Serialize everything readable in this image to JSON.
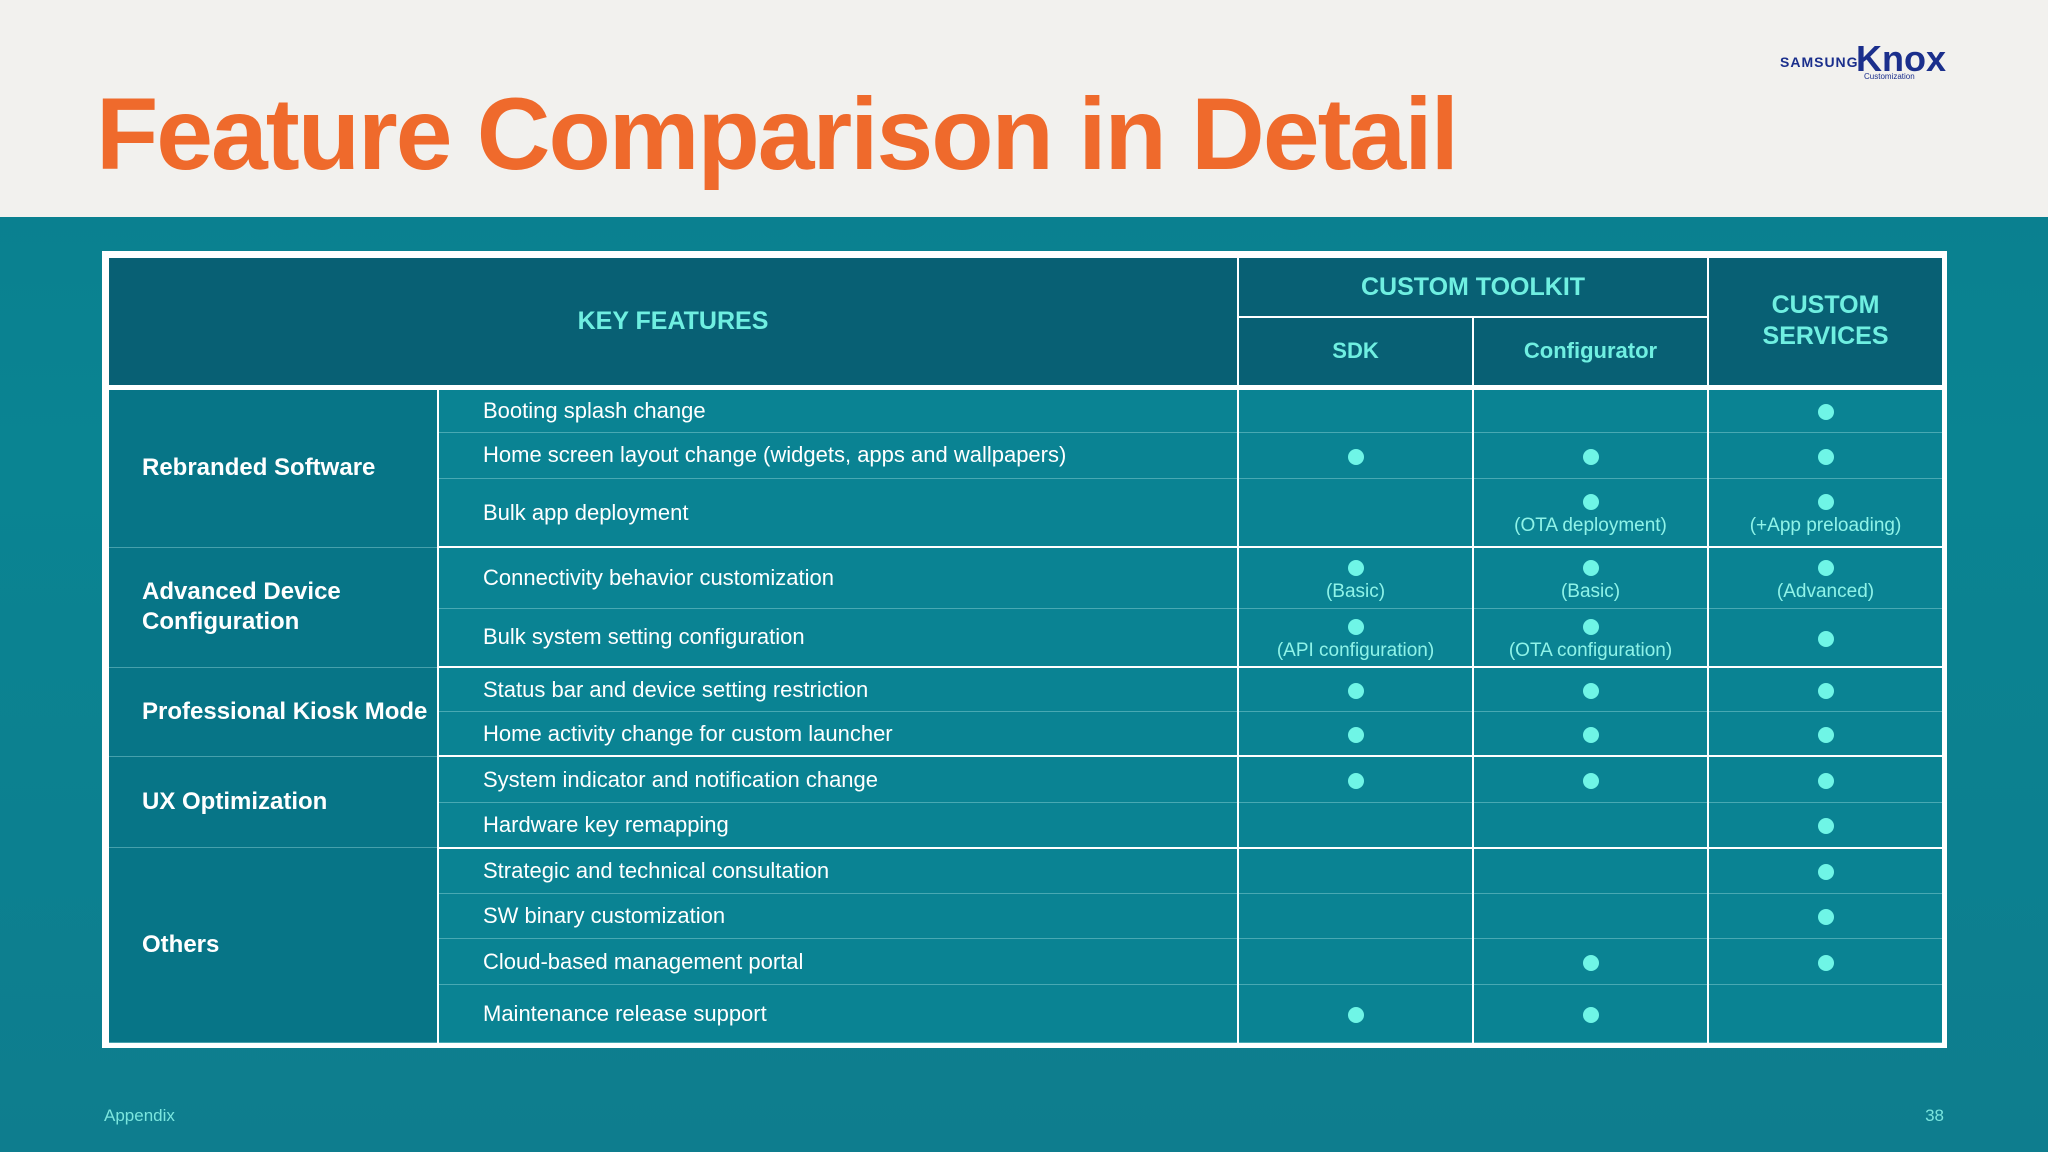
{
  "title": "Feature Comparison in Detail",
  "logo": {
    "brand": "SAMSUNG",
    "product": "Knox",
    "sub": "Customization"
  },
  "table": {
    "headers": {
      "key_features": "KEY FEATURES",
      "custom_toolkit": "CUSTOM TOOLKIT",
      "sdk": "SDK",
      "configurator": "Configurator",
      "custom_services": "CUSTOM SERVICES"
    },
    "categories": {
      "rebranded": "Rebranded Software",
      "advanced": "Advanced Device Configuration",
      "kiosk": "Professional Kiosk Mode",
      "ux": "UX Optimization",
      "others": "Others"
    },
    "rows": [
      {
        "feature": "Booting splash change",
        "sdk": false,
        "configurator": false,
        "services": true
      },
      {
        "feature": "Home screen layout change (widgets, apps and wallpapers)",
        "sdk": true,
        "configurator": true,
        "services": true
      },
      {
        "feature": "Bulk app deployment",
        "sdk": false,
        "configurator": true,
        "configurator_note": "(OTA deployment)",
        "services": true,
        "services_note": "(+App preloading)"
      },
      {
        "feature": "Connectivity behavior customization",
        "sdk": true,
        "sdk_note": "(Basic)",
        "configurator": true,
        "configurator_note": "(Basic)",
        "services": true,
        "services_note": "(Advanced)"
      },
      {
        "feature": "Bulk system setting configuration",
        "sdk": true,
        "sdk_note": "(API configuration)",
        "configurator": true,
        "configurator_note": "(OTA configuration)",
        "services": true
      },
      {
        "feature": "Status bar and device setting restriction",
        "sdk": true,
        "configurator": true,
        "services": true
      },
      {
        "feature": "Home activity change for custom launcher",
        "sdk": true,
        "configurator": true,
        "services": true
      },
      {
        "feature": "System indicator and notification change",
        "sdk": true,
        "configurator": true,
        "services": true
      },
      {
        "feature": "Hardware key remapping",
        "sdk": false,
        "configurator": false,
        "services": true
      },
      {
        "feature": "Strategic and technical consultation",
        "sdk": false,
        "configurator": false,
        "services": true
      },
      {
        "feature": "SW binary customization",
        "sdk": false,
        "configurator": false,
        "services": true
      },
      {
        "feature": "Cloud-based management portal",
        "sdk": false,
        "configurator": true,
        "services": true
      },
      {
        "feature": "Maintenance release support",
        "sdk": true,
        "configurator": true,
        "services": false
      }
    ]
  },
  "footer": {
    "left": "Appendix",
    "page": "38"
  },
  "colors": {
    "title": "#ef6a2c",
    "header_text": "#6fefe1",
    "dot": "#6ff5e6",
    "background": "#0a8492"
  }
}
